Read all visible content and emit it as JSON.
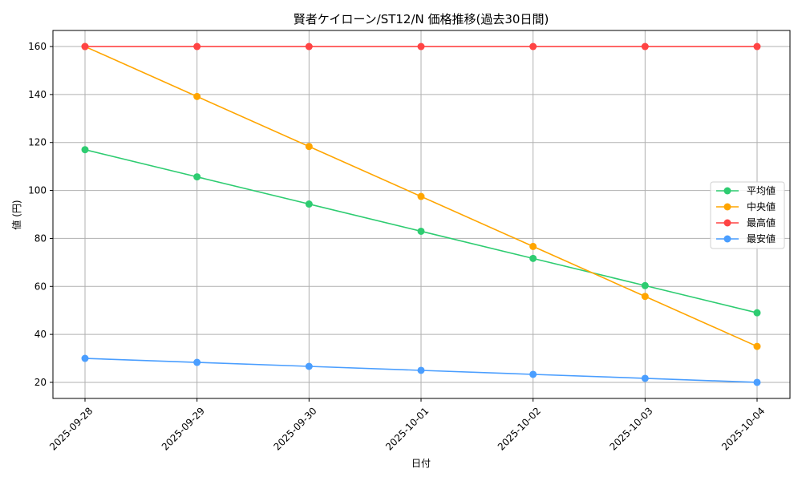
{
  "chart_data": {
    "type": "line",
    "title": "賢者ケイローン/ST12/N 価格推移(過去30日間)",
    "xlabel": "日付",
    "ylabel": "値 (円)",
    "categories": [
      "2025-09-28",
      "2025-09-29",
      "2025-09-30",
      "2025-10-01",
      "2025-10-02",
      "2025-10-03",
      "2025-10-04"
    ],
    "yticks": [
      20,
      40,
      60,
      80,
      100,
      120,
      140,
      160
    ],
    "ylim": [
      13.3,
      166.7
    ],
    "grid": true,
    "legend_position": "center-right",
    "series": [
      {
        "name": "平均値",
        "color": "#2ecc71",
        "values": [
          117,
          105.67,
          94.33,
          83,
          71.67,
          60.33,
          49
        ]
      },
      {
        "name": "中央値",
        "color": "#ffa500",
        "values": [
          160,
          139.17,
          118.33,
          97.5,
          76.67,
          55.83,
          35
        ]
      },
      {
        "name": "最高値",
        "color": "#ff4444",
        "values": [
          160,
          160,
          160,
          160,
          160,
          160,
          160
        ]
      },
      {
        "name": "最安値",
        "color": "#4a9eff",
        "values": [
          30,
          28.33,
          26.67,
          25,
          23.33,
          21.67,
          20
        ]
      }
    ]
  }
}
